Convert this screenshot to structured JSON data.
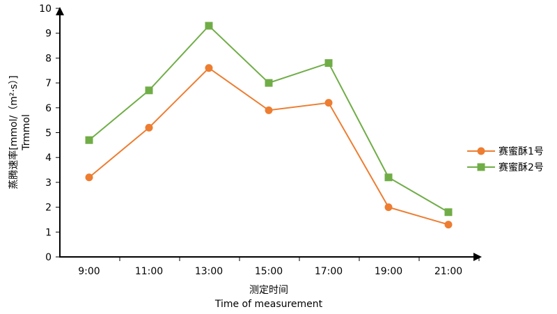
{
  "chart_data": {
    "type": "line",
    "categories": [
      "9:00",
      "11:00",
      "13:00",
      "15:00",
      "17:00",
      "19:00",
      "21:00"
    ],
    "series": [
      {
        "name": "赛蜜酥1号",
        "values": [
          3.2,
          5.2,
          7.6,
          5.9,
          6.2,
          2.0,
          1.3
        ],
        "color": "#ED7D31",
        "marker": "circle"
      },
      {
        "name": "赛蜜酥2号",
        "values": [
          4.7,
          6.7,
          9.3,
          7.0,
          7.8,
          3.2,
          1.8
        ],
        "color": "#70AD47",
        "marker": "square"
      }
    ],
    "ylim": [
      0,
      10
    ],
    "yticks": [
      "0",
      "1",
      "2",
      "3",
      "4",
      "5",
      "6",
      "7",
      "8",
      "9",
      "10"
    ],
    "xlabel": [
      "测定时间",
      "Time of measurement"
    ],
    "ylabel": [
      "蒸腾速率[mmol/（m²·s）]",
      "Trmmol"
    ],
    "grid": false,
    "legend": "right"
  }
}
